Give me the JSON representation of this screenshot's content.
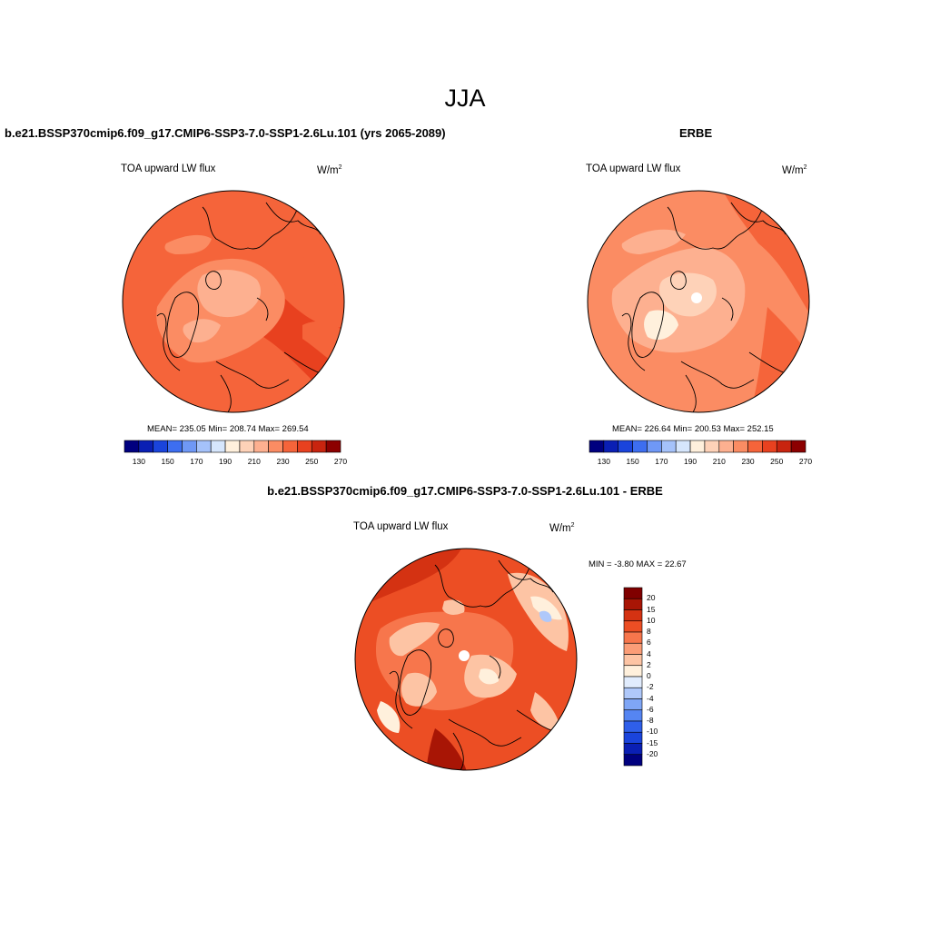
{
  "season": "JJA",
  "panels": {
    "model": {
      "title": "b.e21.BSSP370cmip6.f09_g17.CMIP6-SSP3-7.0-SSP1-2.6Lu.101 (yrs 2065-2089)",
      "variable": "TOA upward LW flux",
      "units_base": "W/m",
      "units_exp": "2",
      "stats": {
        "mean": "235.05",
        "min": "208.74",
        "max": "269.54"
      },
      "stats_text": "MEAN= 235.05  Min= 208.74  Max= 269.54"
    },
    "obs": {
      "title": "ERBE",
      "variable": "TOA upward LW flux",
      "units_base": "W/m",
      "units_exp": "2",
      "stats": {
        "mean": "226.64",
        "min": "200.53",
        "max": "252.15"
      },
      "stats_text": "MEAN= 226.64  Min= 200.53  Max= 252.15"
    },
    "diff": {
      "title": "b.e21.BSSP370cmip6.f09_g17.CMIP6-SSP3-7.0-SSP1-2.6Lu.101 - ERBE",
      "variable": "TOA upward LW flux",
      "units_base": "W/m",
      "units_exp": "2",
      "stats": {
        "min": "-3.80",
        "max": "22.67"
      },
      "stats_text": "MIN =  -3.80 MAX =  22.67"
    }
  },
  "colorbars": {
    "absolute": {
      "colors": [
        "#00007f",
        "#0a1fb4",
        "#1a44dc",
        "#3d6ef0",
        "#6f98f6",
        "#a5c2fa",
        "#d6e6fc",
        "#fff0dc",
        "#fed2b8",
        "#fdb090",
        "#fb8c63",
        "#f5643a",
        "#e8411f",
        "#c8240f",
        "#8c0000"
      ],
      "tick_labels": [
        "130",
        "150",
        "170",
        "190",
        "210",
        "230",
        "250",
        "270"
      ]
    },
    "difference": {
      "colors": [
        "#00007f",
        "#0a1fb4",
        "#1a44dc",
        "#2f5fea",
        "#5585f2",
        "#7fa6f6",
        "#afc8fa",
        "#e1ecfd",
        "#fff0dc",
        "#fdc4a4",
        "#fb9d77",
        "#f7764c",
        "#ec4e24",
        "#d43212",
        "#a81505",
        "#800000"
      ],
      "tick_labels": [
        "20",
        "15",
        "10",
        "8",
        "6",
        "4",
        "2",
        "0",
        "-2",
        "-4",
        "-6",
        "-8",
        "-10",
        "-15",
        "-20"
      ]
    }
  },
  "map_colors": {
    "high": "#e8411f",
    "mid_high": "#f5643a",
    "mid": "#fb8c63",
    "low": "#fdb090",
    "lower": "#fed2b8",
    "lowest": "#fff0dc",
    "negative": "#afc8fa"
  }
}
